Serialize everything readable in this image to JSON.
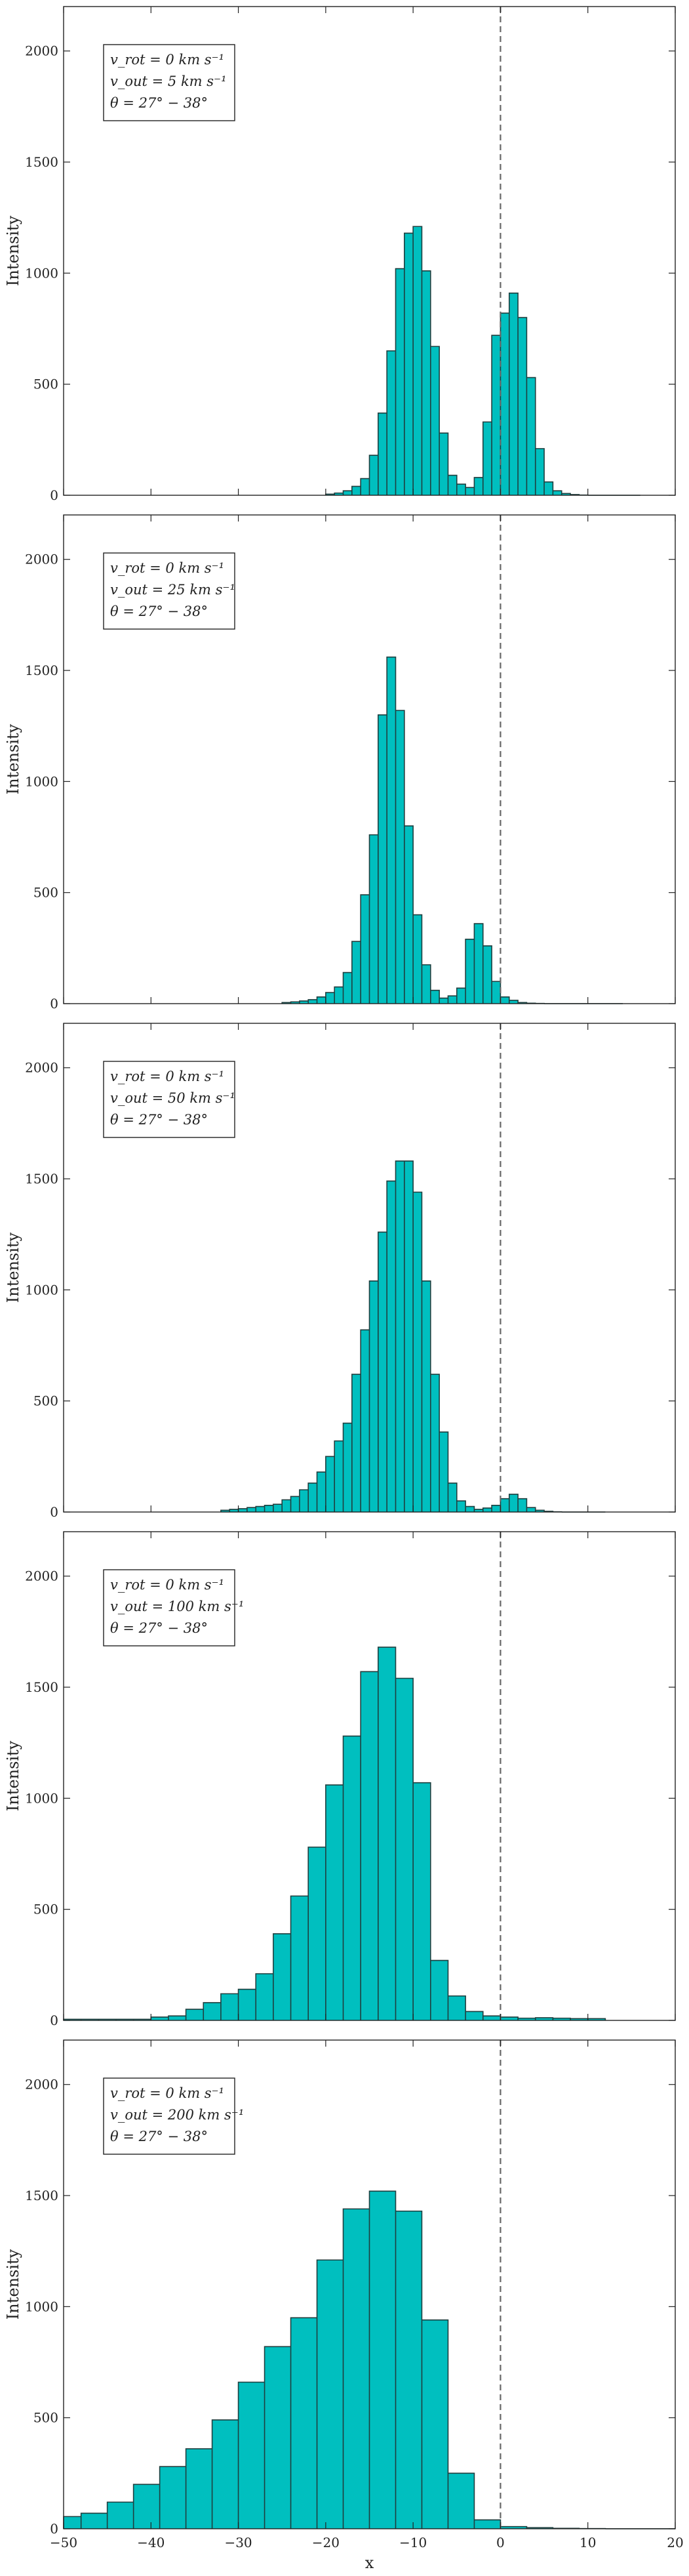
{
  "figure": {
    "xlabel": "x",
    "ylabel": "Intensity",
    "fill_color": "#00bfbf",
    "edge_color": "#1f3f3f"
  },
  "chart_data": [
    {
      "type": "bar",
      "title": "",
      "xlabel": "",
      "ylabel": "Intensity",
      "xlim": [
        -50,
        20
      ],
      "ylim": [
        0,
        2200
      ],
      "xticks": [
        -50,
        -40,
        -30,
        -20,
        -10,
        0,
        10,
        20
      ],
      "yticks": [
        0,
        500,
        1000,
        1500,
        2000
      ],
      "grid": false,
      "vline": 0,
      "annotation": [
        "v_rot = 0 km s⁻¹",
        "v_out = 5 km s⁻¹",
        "θ = 27° − 38°"
      ],
      "bin_edges": [
        -20,
        -19,
        -18,
        -17,
        -16,
        -15,
        -14,
        -13,
        -12,
        -11,
        -10,
        -9,
        -8,
        -7,
        -6,
        -5,
        -4,
        -3,
        -2,
        -1,
        0,
        1,
        2,
        3,
        4,
        5,
        6,
        7,
        8,
        9,
        10,
        11,
        12,
        13,
        14,
        15,
        16
      ],
      "values": [
        5,
        10,
        20,
        40,
        75,
        180,
        370,
        650,
        1020,
        1180,
        1210,
        1010,
        670,
        280,
        90,
        50,
        35,
        80,
        330,
        720,
        820,
        910,
        800,
        530,
        210,
        60,
        20,
        8,
        3,
        1,
        0,
        0,
        0,
        0,
        0,
        0
      ]
    },
    {
      "type": "bar",
      "title": "",
      "xlabel": "",
      "ylabel": "Intensity",
      "xlim": [
        -50,
        20
      ],
      "ylim": [
        0,
        2200
      ],
      "xticks": [
        -50,
        -40,
        -30,
        -20,
        -10,
        0,
        10,
        20
      ],
      "yticks": [
        0,
        500,
        1000,
        1500,
        2000
      ],
      "grid": false,
      "vline": 0,
      "annotation": [
        "v_rot = 0 km s⁻¹",
        "v_out = 25 km s⁻¹",
        "θ = 27° − 38°"
      ],
      "bin_edges": [
        -25,
        -24,
        -23,
        -22,
        -21,
        -20,
        -19,
        -18,
        -17,
        -16,
        -15,
        -14,
        -13,
        -12,
        -11,
        -10,
        -9,
        -8,
        -7,
        -6,
        -5,
        -4,
        -3,
        -2,
        -1,
        0,
        1,
        2,
        3,
        4,
        5,
        6,
        7,
        8,
        9,
        10,
        11,
        12,
        13,
        14
      ],
      "values": [
        5,
        8,
        12,
        18,
        30,
        50,
        75,
        140,
        280,
        490,
        760,
        1300,
        1560,
        1320,
        800,
        400,
        175,
        60,
        25,
        35,
        70,
        290,
        360,
        260,
        100,
        30,
        15,
        5,
        2,
        1,
        0,
        0,
        0,
        0,
        0,
        0,
        0,
        0,
        0
      ]
    },
    {
      "type": "bar",
      "title": "",
      "xlabel": "",
      "ylabel": "Intensity",
      "xlim": [
        -50,
        20
      ],
      "ylim": [
        0,
        2200
      ],
      "xticks": [
        -50,
        -40,
        -30,
        -20,
        -10,
        0,
        10,
        20
      ],
      "yticks": [
        0,
        500,
        1000,
        1500,
        2000
      ],
      "grid": false,
      "vline": 0,
      "annotation": [
        "v_rot = 0 km s⁻¹",
        "v_out = 50 km s⁻¹",
        "θ = 27° − 38°"
      ],
      "bin_edges": [
        -32,
        -31,
        -30,
        -29,
        -28,
        -27,
        -26,
        -25,
        -24,
        -23,
        -22,
        -21,
        -20,
        -19,
        -18,
        -17,
        -16,
        -15,
        -14,
        -13,
        -12,
        -11,
        -10,
        -9,
        -8,
        -7,
        -6,
        -5,
        -4,
        -3,
        -2,
        -1,
        0,
        1,
        2,
        3,
        4,
        5,
        6,
        7,
        8,
        9,
        10,
        11,
        12
      ],
      "values": [
        8,
        12,
        15,
        20,
        25,
        30,
        35,
        55,
        70,
        100,
        130,
        180,
        250,
        320,
        400,
        620,
        820,
        1040,
        1260,
        1490,
        1580,
        1580,
        1440,
        1040,
        620,
        360,
        130,
        50,
        25,
        12,
        18,
        30,
        60,
        80,
        60,
        20,
        8,
        3,
        1,
        0,
        0,
        0,
        0,
        0
      ]
    },
    {
      "type": "bar",
      "title": "",
      "xlabel": "",
      "ylabel": "Intensity",
      "xlim": [
        -50,
        20
      ],
      "ylim": [
        0,
        2200
      ],
      "xticks": [
        -50,
        -40,
        -30,
        -20,
        -10,
        0,
        10,
        20
      ],
      "yticks": [
        0,
        500,
        1000,
        1500,
        2000
      ],
      "grid": false,
      "vline": 0,
      "annotation": [
        "v_rot = 0 km s⁻¹",
        "v_out = 100 km s⁻¹",
        "θ = 27° − 38°"
      ],
      "bin_edges": [
        -50,
        -48,
        -46,
        -44,
        -42,
        -40,
        -38,
        -36,
        -34,
        -32,
        -30,
        -28,
        -26,
        -24,
        -22,
        -20,
        -18,
        -16,
        -14,
        -12,
        -10,
        -8,
        -6,
        -4,
        -2,
        0,
        2,
        4,
        6,
        8,
        10,
        12
      ],
      "values": [
        5,
        5,
        5,
        5,
        5,
        15,
        20,
        50,
        80,
        120,
        140,
        210,
        390,
        560,
        780,
        1060,
        1280,
        1570,
        1680,
        1540,
        1070,
        270,
        110,
        40,
        20,
        15,
        10,
        12,
        10,
        8,
        8
      ]
    },
    {
      "type": "bar",
      "title": "",
      "xlabel": "x",
      "ylabel": "Intensity",
      "xlim": [
        -50,
        20
      ],
      "ylim": [
        0,
        2200
      ],
      "xticks": [
        -50,
        -40,
        -30,
        -20,
        -10,
        0,
        10,
        20
      ],
      "yticks": [
        0,
        500,
        1000,
        1500,
        2000
      ],
      "grid": false,
      "vline": 0,
      "annotation": [
        "v_rot = 0 km s⁻¹",
        "v_out = 200 km s⁻¹",
        "θ = 27° − 38°"
      ],
      "bin_edges": [
        -50,
        -48,
        -45,
        -42,
        -39,
        -36,
        -33,
        -30,
        -27,
        -24,
        -21,
        -18,
        -15,
        -12,
        -9,
        -6,
        -3,
        0,
        3,
        6,
        9,
        12,
        15,
        18,
        20
      ],
      "values": [
        55,
        70,
        120,
        200,
        280,
        360,
        490,
        660,
        820,
        950,
        1210,
        1440,
        1520,
        1430,
        940,
        250,
        40,
        10,
        5,
        2,
        1,
        0,
        0,
        0
      ]
    }
  ]
}
